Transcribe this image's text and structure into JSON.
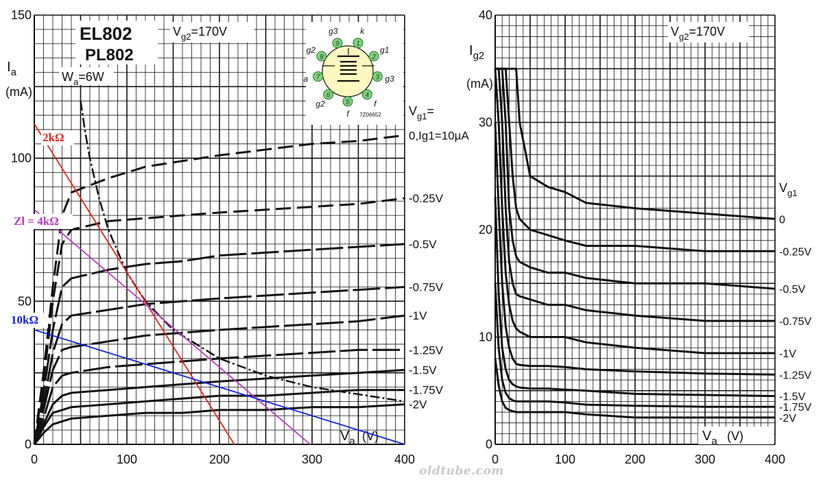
{
  "watermark": "oldtube.com",
  "colors": {
    "ink": "#111111",
    "red": "#e8231a",
    "magenta": "#b83cc2",
    "blue": "#1020e0",
    "socket_fill": "#fff7c0",
    "pin_green": "#7fd17f"
  },
  "chart_data": [
    {
      "type": "line",
      "title": "EL802",
      "subtitle": "PL802",
      "condition": "V",
      "condition_sub": "g2",
      "condition_value": "=170V",
      "xlabel": "V",
      "xlabel_sub": "a",
      "xunit": "(V)",
      "ylabel": "I",
      "ylabel_sub": "a",
      "yunit": "(mA)",
      "xlim": [
        0,
        400
      ],
      "ylim": [
        0,
        150
      ],
      "x_ticks": [
        {
          "value": 0,
          "label": "0"
        },
        {
          "value": 100,
          "label": "100"
        },
        {
          "value": 200,
          "label": "200"
        },
        {
          "value": 300,
          "label": "300"
        },
        {
          "value": 400,
          "label": "400"
        }
      ],
      "y_ticks": [
        {
          "value": 0,
          "label": "0"
        },
        {
          "value": 50,
          "label": "50"
        },
        {
          "value": 100,
          "label": "100"
        },
        {
          "value": 150,
          "label": "150"
        }
      ],
      "grid": true,
      "legend_title": "V",
      "legend_title_sub": "g1",
      "legend_title_suffix": "=",
      "series": [
        {
          "name": "0,Ig1=10µA",
          "x": [
            0,
            10,
            20,
            30,
            40,
            80,
            120,
            160,
            200,
            250,
            300,
            350,
            400
          ],
          "y": [
            0,
            25,
            55,
            80,
            88,
            93,
            97,
            99,
            101,
            103,
            105,
            106,
            108
          ]
        },
        {
          "name": "-0.25V",
          "x": [
            0,
            10,
            20,
            30,
            40,
            80,
            120,
            160,
            200,
            250,
            300,
            350,
            400
          ],
          "y": [
            0,
            22,
            50,
            70,
            75,
            78,
            79,
            80,
            81,
            82,
            83,
            84,
            86
          ]
        },
        {
          "name": "-0.5V",
          "x": [
            0,
            10,
            20,
            30,
            40,
            80,
            120,
            160,
            200,
            250,
            300,
            350,
            400
          ],
          "y": [
            0,
            18,
            40,
            55,
            58,
            61,
            63,
            64,
            66,
            67,
            68,
            69,
            70
          ]
        },
        {
          "name": "-0.75V",
          "x": [
            0,
            10,
            20,
            30,
            40,
            80,
            120,
            160,
            200,
            250,
            300,
            350,
            400
          ],
          "y": [
            0,
            14,
            32,
            42,
            45,
            47,
            49,
            50,
            51,
            52,
            53,
            54,
            55
          ]
        },
        {
          "name": "-1V",
          "x": [
            0,
            10,
            20,
            30,
            40,
            80,
            120,
            160,
            200,
            250,
            300,
            350,
            400
          ],
          "y": [
            0,
            12,
            26,
            33,
            34,
            36,
            38,
            39,
            40,
            41,
            42,
            43,
            45
          ]
        },
        {
          "name": "-1.25V",
          "x": [
            0,
            10,
            20,
            30,
            40,
            80,
            120,
            160,
            200,
            250,
            300,
            350,
            400
          ],
          "y": [
            0,
            9,
            20,
            24,
            25,
            27,
            28,
            29,
            30,
            31,
            32,
            33,
            33
          ]
        },
        {
          "name": "-1.5V",
          "x": [
            0,
            10,
            20,
            30,
            40,
            80,
            120,
            160,
            200,
            250,
            300,
            350,
            400
          ],
          "y": [
            0,
            7,
            14,
            17,
            18,
            19,
            20,
            21,
            22,
            23,
            24,
            25,
            26
          ]
        },
        {
          "name": "-1.75V",
          "x": [
            0,
            10,
            20,
            30,
            40,
            80,
            120,
            160,
            200,
            250,
            300,
            350,
            400
          ],
          "y": [
            0,
            6,
            11,
            12,
            13,
            14,
            15,
            16,
            17,
            17,
            18,
            19,
            19
          ]
        },
        {
          "name": "-2V",
          "x": [
            0,
            10,
            20,
            30,
            40,
            80,
            120,
            160,
            200,
            250,
            300,
            350,
            400
          ],
          "y": [
            0,
            4,
            7,
            8,
            9,
            10,
            11,
            11,
            12,
            12,
            13,
            13,
            14
          ]
        }
      ],
      "dissipation_curve": {
        "label": "W",
        "label_sub": "a",
        "label_value": "=6W",
        "x": [
          50,
          55,
          60,
          70,
          80,
          100,
          120,
          150,
          200,
          250,
          300,
          400
        ],
        "y": [
          120,
          109,
          100,
          86,
          75,
          60,
          50,
          40,
          30,
          24,
          20,
          15
        ]
      },
      "load_lines": [
        {
          "name": "2kΩ",
          "color": "#e8231a",
          "x": [
            0,
            216
          ],
          "y": [
            112,
            0
          ]
        },
        {
          "name": "Zl = 4kΩ",
          "color": "#b83cc2",
          "x": [
            0,
            298
          ],
          "y": [
            82,
            0
          ]
        },
        {
          "name": "10kΩ",
          "color": "#1020e0",
          "x": [
            0,
            400
          ],
          "y": [
            40,
            0
          ]
        }
      ],
      "socket_diagram": {
        "code": "7Z06652",
        "pins": [
          {
            "num": "1",
            "label": "k"
          },
          {
            "num": "2",
            "label": "g1"
          },
          {
            "num": "3",
            "label": "g3"
          },
          {
            "num": "4",
            "label": "f"
          },
          {
            "num": "5",
            "label": "f"
          },
          {
            "num": "6",
            "label": "g2"
          },
          {
            "num": "7",
            "label": "a"
          },
          {
            "num": "8",
            "label": "g2"
          },
          {
            "num": "9",
            "label": "g3"
          }
        ]
      }
    },
    {
      "type": "line",
      "condition": "V",
      "condition_sub": "g2",
      "condition_value": "=170V",
      "xlabel": "V",
      "xlabel_sub": "a",
      "xunit": "(V)",
      "ylabel": "I",
      "ylabel_sub": "g2",
      "yunit": "(mA)",
      "xlim": [
        0,
        400
      ],
      "ylim": [
        0,
        40
      ],
      "x_ticks": [
        {
          "value": 0,
          "label": "0"
        },
        {
          "value": 100,
          "label": "100"
        },
        {
          "value": 200,
          "label": "200"
        },
        {
          "value": 300,
          "label": "300"
        },
        {
          "value": 400,
          "label": "400"
        }
      ],
      "y_ticks": [
        {
          "value": 0,
          "label": "0"
        },
        {
          "value": 10,
          "label": "10"
        },
        {
          "value": 20,
          "label": "20"
        },
        {
          "value": 30,
          "label": "30"
        },
        {
          "value": 40,
          "label": "40"
        }
      ],
      "grid": true,
      "legend_title": "V",
      "legend_title_sub": "g1",
      "series": [
        {
          "name": "0",
          "x": [
            0,
            5,
            10,
            15,
            20,
            25,
            30,
            35,
            50,
            75,
            100,
            130,
            200,
            300,
            400
          ],
          "y": [
            35,
            35,
            35,
            35,
            35,
            35,
            35,
            30,
            25,
            24,
            23.5,
            22.5,
            22,
            21.5,
            21
          ]
        },
        {
          "name": "-0.25V",
          "x": [
            0,
            5,
            10,
            15,
            20,
            25,
            30,
            35,
            50,
            75,
            100,
            130,
            200,
            300,
            400
          ],
          "y": [
            35,
            35,
            35,
            35,
            30,
            25,
            22,
            21,
            20,
            19.5,
            19,
            18.5,
            18.5,
            18,
            18
          ]
        },
        {
          "name": "-0.5V",
          "x": [
            0,
            5,
            10,
            15,
            20,
            25,
            30,
            35,
            50,
            75,
            100,
            130,
            200,
            300,
            400
          ],
          "y": [
            35,
            35,
            35,
            30,
            22,
            19,
            17.5,
            17,
            16.5,
            16,
            16,
            15.5,
            15,
            15,
            14.5
          ]
        },
        {
          "name": "-0.75V",
          "x": [
            0,
            5,
            10,
            15,
            20,
            25,
            30,
            35,
            50,
            75,
            100,
            130,
            200,
            300,
            400
          ],
          "y": [
            35,
            35,
            30,
            22,
            17,
            15,
            14,
            13.8,
            13.5,
            13,
            13,
            12.5,
            12,
            11.5,
            11.5
          ]
        },
        {
          "name": "-1V",
          "x": [
            0,
            5,
            10,
            15,
            20,
            25,
            30,
            35,
            50,
            75,
            100,
            130,
            200,
            300,
            400
          ],
          "y": [
            35,
            30,
            22,
            16,
            13,
            11.5,
            10.8,
            10.5,
            10,
            10,
            10,
            9.5,
            9,
            8.5,
            8.5
          ]
        },
        {
          "name": "-1.25V",
          "x": [
            0,
            5,
            10,
            15,
            20,
            25,
            30,
            35,
            50,
            75,
            100,
            130,
            200,
            300,
            400
          ],
          "y": [
            30,
            22,
            15,
            11,
            9,
            8,
            7.5,
            7.4,
            7.3,
            7.3,
            7.2,
            7,
            6.8,
            6.6,
            6.5
          ]
        },
        {
          "name": "-1.5V",
          "x": [
            0,
            5,
            10,
            15,
            20,
            25,
            30,
            35,
            50,
            75,
            100,
            130,
            200,
            300,
            400
          ],
          "y": [
            23,
            14,
            9,
            7,
            6,
            5.6,
            5.4,
            5.3,
            5.2,
            5.2,
            5.1,
            5,
            4.7,
            4.6,
            4.5
          ]
        },
        {
          "name": "-1.75V",
          "x": [
            0,
            5,
            10,
            15,
            20,
            25,
            30,
            35,
            50,
            75,
            100,
            130,
            200,
            300,
            400
          ],
          "y": [
            15,
            9,
            6,
            4.8,
            4.3,
            4.1,
            4,
            4,
            4,
            4,
            3.9,
            3.7,
            3.6,
            3.5,
            3.5
          ]
        },
        {
          "name": "-2V",
          "x": [
            0,
            5,
            10,
            15,
            20,
            25,
            30,
            35,
            50,
            75,
            100,
            130,
            200,
            300,
            400
          ],
          "y": [
            8,
            5.5,
            4,
            3.4,
            3.2,
            3.1,
            3,
            3,
            3,
            3,
            3,
            2.8,
            2.5,
            2.5,
            2.5
          ]
        }
      ]
    }
  ]
}
